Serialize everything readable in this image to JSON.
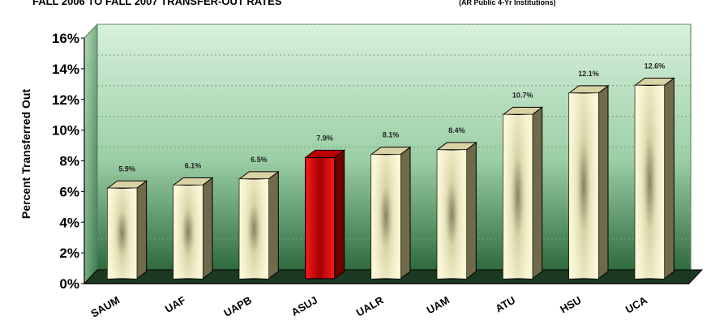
{
  "chart_data": {
    "type": "bar",
    "title": "FALL 2006 TO FALL 2007 TRANSFER-OUT RATES",
    "subtitle": "(AR Public 4-Yr Institutions)",
    "xlabel": "",
    "ylabel": "Percent Transferred Out",
    "categories": [
      "SAUM",
      "UAF",
      "UAPB",
      "ASUJ",
      "UALR",
      "UAM",
      "ATU",
      "HSU",
      "UCA"
    ],
    "values": [
      5.9,
      6.1,
      6.5,
      7.9,
      8.1,
      8.4,
      10.7,
      12.1,
      12.6
    ],
    "data_labels": [
      "5.9%",
      "6.1%",
      "6.5%",
      "7.9%",
      "8.1%",
      "8.4%",
      "10.7%",
      "12.1%",
      "12.6%"
    ],
    "ylim": [
      0,
      16
    ],
    "yticks": [
      0,
      2,
      4,
      6,
      8,
      10,
      12,
      14,
      16
    ],
    "ytick_labels": [
      "0%",
      "2%",
      "4%",
      "6%",
      "8%",
      "10%",
      "12%",
      "14%",
      "16%"
    ],
    "highlight_category": "ASUJ",
    "grid": true,
    "colors": {
      "bar": "#f8f3c8",
      "bar_shade": "#8a8462",
      "highlight_bar": "#e00000",
      "wall_top": "#d8f0dc",
      "wall_bottom": "#2f6b3e",
      "floor": "#1c3a22",
      "gridline": "#6fa37a"
    }
  }
}
